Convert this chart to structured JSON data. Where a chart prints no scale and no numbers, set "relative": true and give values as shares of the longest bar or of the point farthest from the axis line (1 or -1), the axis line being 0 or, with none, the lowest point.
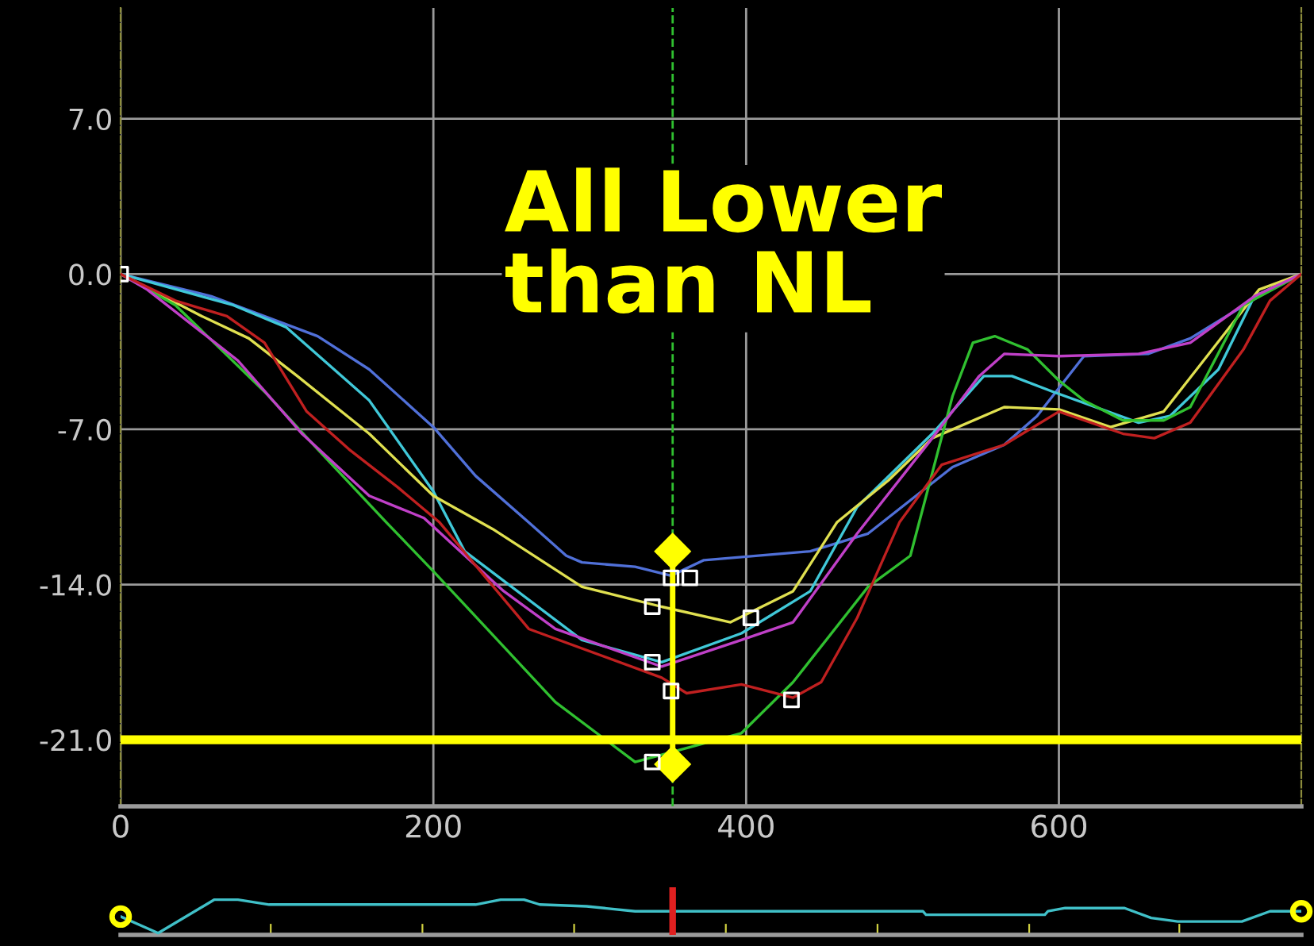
{
  "chart_data": [
    {
      "type": "line",
      "xlim": [
        0,
        755
      ],
      "ylim": [
        -24,
        12
      ],
      "xticks": [
        0,
        200,
        400,
        600
      ],
      "yticks": [
        {
          "value": 7,
          "label": "7.0"
        },
        {
          "value": 0,
          "label": "0.0"
        },
        {
          "value": -7,
          "label": "-7.0"
        },
        {
          "value": -14,
          "label": "-14.0"
        },
        {
          "value": -21,
          "label": "-21.0"
        }
      ],
      "grid": true,
      "annotations": [
        "All Lower\nthan NL"
      ],
      "ref_lines": [
        {
          "axis": "y",
          "value": -21,
          "color": "#ffff00",
          "line_style": "solid"
        },
        {
          "axis": "x",
          "value": 353,
          "color": "#30c030",
          "line_style": "dashed"
        }
      ],
      "series": [
        {
          "color": "#5070d8",
          "x": [
            0,
            58,
            126,
            159,
            200,
            227,
            261,
            285,
            295,
            329,
            352,
            373,
            441,
            478,
            532,
            565,
            586,
            616,
            657,
            684,
            728,
            755
          ],
          "values": [
            0,
            -1.0,
            -2.8,
            -4.3,
            -6.9,
            -9.1,
            -11.2,
            -12.7,
            -13.0,
            -13.2,
            -13.6,
            -12.9,
            -12.5,
            -11.7,
            -8.7,
            -7.7,
            -6.4,
            -3.7,
            -3.6,
            -2.9,
            -1.0,
            0
          ]
        },
        {
          "color": "#40c8d8",
          "x": [
            0,
            72,
            106,
            159,
            200,
            220,
            295,
            346,
            397,
            441,
            471,
            519,
            552,
            570,
            596,
            651,
            671,
            702,
            725,
            755
          ],
          "values": [
            0,
            -1.4,
            -2.4,
            -5.7,
            -9.8,
            -12.5,
            -16.5,
            -17.5,
            -16.2,
            -14.3,
            -10.5,
            -7.2,
            -4.6,
            -4.6,
            -5.3,
            -6.7,
            -6.4,
            -4.3,
            -1.0,
            0
          ]
        },
        {
          "color": "#e0e050",
          "x": [
            0,
            52,
            82,
            113,
            159,
            200,
            238,
            295,
            346,
            390,
            430,
            458,
            491,
            519,
            565,
            600,
            633,
            667,
            728,
            755
          ],
          "values": [
            0,
            -1.9,
            -2.9,
            -4.6,
            -7.2,
            -10.0,
            -11.5,
            -14.1,
            -15.0,
            -15.7,
            -14.3,
            -11.2,
            -9.3,
            -7.4,
            -6.0,
            -6.1,
            -6.9,
            -6.2,
            -0.7,
            0
          ]
        },
        {
          "color": "#30c030",
          "x": [
            0,
            35,
            92,
            126,
            170,
            200,
            245,
            278,
            329,
            397,
            430,
            478,
            505,
            532,
            545,
            559,
            580,
            600,
            616,
            641,
            667,
            684,
            718,
            755
          ],
          "values": [
            0,
            -1.4,
            -5.3,
            -7.9,
            -11.2,
            -13.4,
            -16.8,
            -19.3,
            -22.0,
            -20.7,
            -18.4,
            -14.1,
            -12.7,
            -5.5,
            -3.1,
            -2.8,
            -3.4,
            -4.8,
            -5.7,
            -6.6,
            -6.6,
            -6.0,
            -1.4,
            0
          ]
        },
        {
          "color": "#c040c8",
          "x": [
            0,
            17,
            75,
            116,
            159,
            194,
            245,
            278,
            346,
            397,
            430,
            471,
            519,
            549,
            565,
            600,
            651,
            684,
            725,
            755
          ],
          "values": [
            0,
            -0.7,
            -3.9,
            -7.2,
            -10.0,
            -11.0,
            -14.3,
            -16.0,
            -17.7,
            -16.5,
            -15.7,
            -11.7,
            -7.4,
            -4.6,
            -3.6,
            -3.7,
            -3.6,
            -3.1,
            -1.0,
            0
          ]
        },
        {
          "color": "#c02020",
          "x": [
            0,
            35,
            68,
            92,
            119,
            146,
            177,
            204,
            261,
            346,
            362,
            397,
            430,
            448,
            471,
            498,
            525,
            565,
            600,
            641,
            661,
            684,
            718,
            735,
            755
          ],
          "values": [
            0,
            -1.2,
            -1.9,
            -3.1,
            -6.2,
            -7.9,
            -9.6,
            -11.2,
            -16.0,
            -18.2,
            -18.9,
            -18.5,
            -19.1,
            -18.4,
            -15.5,
            -11.2,
            -8.6,
            -7.7,
            -6.2,
            -7.2,
            -7.4,
            -6.7,
            -3.4,
            -1.2,
            0
          ]
        },
        {
          "type": "line",
          "color": "#ffff00",
          "marker": "diamond",
          "x": [
            353,
            353
          ],
          "values": [
            -12.5,
            -22.1
          ]
        },
        {
          "type": "scatter",
          "color": "#ffffff",
          "marker": "square",
          "x": [
            0,
            340,
            340,
            352,
            364,
            352,
            403,
            429,
            340
          ],
          "values": [
            0,
            -15.0,
            -17.5,
            -13.7,
            -13.7,
            -18.8,
            -15.5,
            -19.2,
            -22.0
          ]
        }
      ]
    },
    {
      "type": "line",
      "relative": true,
      "xlim": [
        0,
        755
      ],
      "tick_labels": false,
      "xticks": [
        {
          "value": 96,
          "label": null
        },
        {
          "value": 193,
          "label": null
        },
        {
          "value": 290,
          "label": null
        },
        {
          "value": 387,
          "label": null
        },
        {
          "value": 484,
          "label": null
        },
        {
          "value": 581,
          "label": null
        },
        {
          "value": 677,
          "label": null
        }
      ],
      "ref_lines": [
        {
          "axis": "x",
          "value": 353,
          "color": "#e02020",
          "line_style": "solid"
        }
      ],
      "series": [
        {
          "color": "#40c0c8",
          "x": [
            0,
            24,
            60,
            75,
            95,
            227,
            243,
            258,
            268,
            298,
            329,
            513,
            515,
            591,
            593,
            604,
            642,
            659,
            676,
            717,
            735,
            755
          ],
          "values": [
            0.52,
            0.05,
            1,
            1,
            0.86,
            0.86,
            1,
            1,
            0.86,
            0.81,
            0.67,
            0.67,
            0.57,
            0.57,
            0.67,
            0.76,
            0.76,
            0.48,
            0.38,
            0.38,
            0.67,
            0.67
          ]
        },
        {
          "type": "scatter",
          "color": "#ffff00",
          "marker": "circle",
          "x": [
            0,
            755
          ],
          "values": [
            0.52,
            0.67
          ]
        }
      ]
    }
  ]
}
